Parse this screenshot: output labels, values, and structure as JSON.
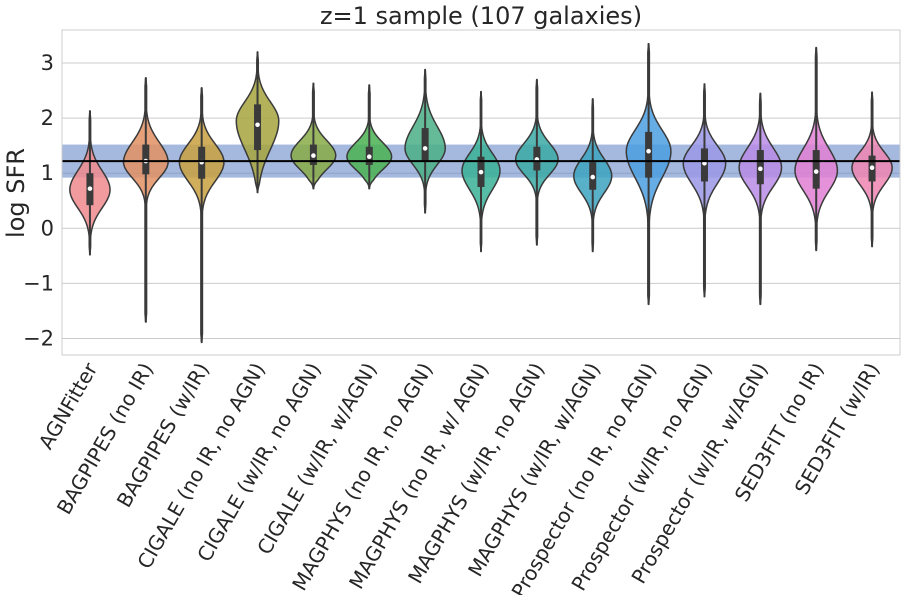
{
  "chart_data": {
    "type": "violin",
    "title": "z=1 sample (107 galaxies)",
    "xlabel": "",
    "ylabel": "log SFR",
    "ylim": [
      -2.3,
      3.6
    ],
    "yticks": [
      3,
      2,
      1,
      0,
      -1,
      -2
    ],
    "ytick_labels": [
      "3",
      "2",
      "1",
      "0",
      "−1",
      "−2"
    ],
    "grid": true,
    "reference_line": 1.22,
    "reference_band": [
      0.92,
      1.52
    ],
    "categories": [
      {
        "label": "AGNFitter",
        "color": "#f08a8e",
        "min": -0.48,
        "q1": 0.42,
        "median": 0.72,
        "q3": 1.0,
        "max": 2.13,
        "mode": 0.7,
        "width": 0.9
      },
      {
        "label": "BAGPIPES (no IR)",
        "color": "#e39063",
        "min": -1.7,
        "q1": 0.98,
        "median": 1.22,
        "q3": 1.52,
        "max": 2.73,
        "mode": 1.2,
        "width": 1.0
      },
      {
        "label": "BAGPIPES (w/IR)",
        "color": "#c9a03e",
        "min": -2.07,
        "q1": 0.9,
        "median": 1.2,
        "q3": 1.48,
        "max": 2.55,
        "mode": 1.2,
        "width": 1.0
      },
      {
        "label": "CIGALE (no IR, no AGN)",
        "color": "#a6a43d",
        "min": 0.65,
        "q1": 1.42,
        "median": 1.88,
        "q3": 2.25,
        "max": 3.2,
        "mode": 1.95,
        "width": 0.95
      },
      {
        "label": "CIGALE (w/IR, no AGN)",
        "color": "#87ab45",
        "min": 0.72,
        "q1": 1.15,
        "median": 1.32,
        "q3": 1.52,
        "max": 2.63,
        "mode": 1.32,
        "width": 1.0
      },
      {
        "label": "CIGALE (w/IR, w/AGN)",
        "color": "#4ab152",
        "min": 0.72,
        "q1": 1.15,
        "median": 1.3,
        "q3": 1.48,
        "max": 2.6,
        "mode": 1.3,
        "width": 1.0
      },
      {
        "label": "MAGPHYS (no IR, no AGN)",
        "color": "#4aaf86",
        "min": 0.28,
        "q1": 1.22,
        "median": 1.45,
        "q3": 1.82,
        "max": 2.88,
        "mode": 1.45,
        "width": 0.9
      },
      {
        "label": "MAGPHYS (no IR, w/ AGN)",
        "color": "#3ab095",
        "min": -0.42,
        "q1": 0.75,
        "median": 1.02,
        "q3": 1.3,
        "max": 2.48,
        "mode": 1.05,
        "width": 0.85
      },
      {
        "label": "MAGPHYS (w/IR, no AGN)",
        "color": "#3aa9a5",
        "min": -0.3,
        "q1": 1.05,
        "median": 1.25,
        "q3": 1.48,
        "max": 2.7,
        "mode": 1.25,
        "width": 0.95
      },
      {
        "label": "MAGPHYS (w/IR, w/AGN)",
        "color": "#3ba3c0",
        "min": -0.42,
        "q1": 0.7,
        "median": 0.93,
        "q3": 1.2,
        "max": 2.35,
        "mode": 0.95,
        "width": 0.85
      },
      {
        "label": "Prospector (no IR, no AGN)",
        "color": "#4b9de0",
        "min": -1.38,
        "q1": 0.92,
        "median": 1.4,
        "q3": 1.75,
        "max": 3.35,
        "mode": 1.4,
        "width": 1.0
      },
      {
        "label": "Prospector (w/IR, no AGN)",
        "color": "#9a98e6",
        "min": -1.24,
        "q1": 0.85,
        "median": 1.18,
        "q3": 1.45,
        "max": 2.62,
        "mode": 1.18,
        "width": 0.95
      },
      {
        "label": "Prospector (w/IR, w/AGN)",
        "color": "#b98be6",
        "min": -1.38,
        "q1": 0.8,
        "median": 1.08,
        "q3": 1.42,
        "max": 2.45,
        "mode": 1.1,
        "width": 0.95
      },
      {
        "label": "SED3FIT (no IR)",
        "color": "#e17fd3",
        "min": -0.4,
        "q1": 0.72,
        "median": 1.03,
        "q3": 1.42,
        "max": 3.28,
        "mode": 1.05,
        "width": 0.95
      },
      {
        "label": "SED3FIT (w/IR)",
        "color": "#ee85b3",
        "min": -0.33,
        "q1": 0.85,
        "median": 1.1,
        "q3": 1.32,
        "max": 2.47,
        "mode": 1.1,
        "width": 0.9
      }
    ]
  }
}
